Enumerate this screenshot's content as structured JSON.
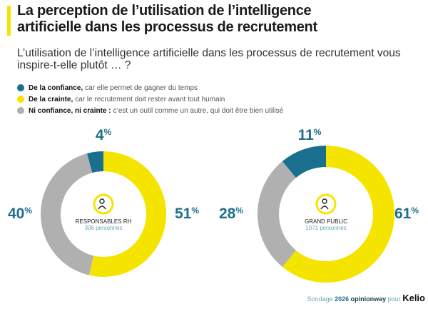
{
  "title_line1": "La perception de l’utilisation de l’intelligence",
  "title_line2": "artificielle dans les processus de recrutement",
  "question": "L’utilisation de l’intelligence artificielle dans les processus de recrutement vous inspire-t-elle plutôt … ?",
  "legend": [
    {
      "bold": "De la confiance,",
      "text": "car elle permet de gagner du temps",
      "color": "#1b6f8e"
    },
    {
      "bold": "De la crainte,",
      "text": "car le recrutement doit rester avant tout humain",
      "color": "#f5e400"
    },
    {
      "bold": "Ni confiance, ni crainte :",
      "text": "c’est un outil comme un autre, qui doit être bien utilisé",
      "color": "#b0b0b0"
    }
  ],
  "chart_data": [
    {
      "type": "pie",
      "title": "RESPONSABLES RH",
      "subtitle": "306 personnes",
      "categories": [
        "De la confiance",
        "De la crainte",
        "Ni confiance, ni crainte"
      ],
      "values": [
        4,
        51,
        40
      ],
      "unit": "%"
    },
    {
      "type": "pie",
      "title": "GRAND PUBLIC",
      "subtitle": "1071 personnes",
      "categories": [
        "De la confiance",
        "De la crainte",
        "Ni confiance, ni crainte"
      ],
      "values": [
        11,
        61,
        28
      ],
      "unit": "%"
    }
  ],
  "footer": {
    "prefix": "Sondage",
    "year": "2026",
    "brand": "opinionway",
    "pour": "pour",
    "client": "Kelio"
  }
}
